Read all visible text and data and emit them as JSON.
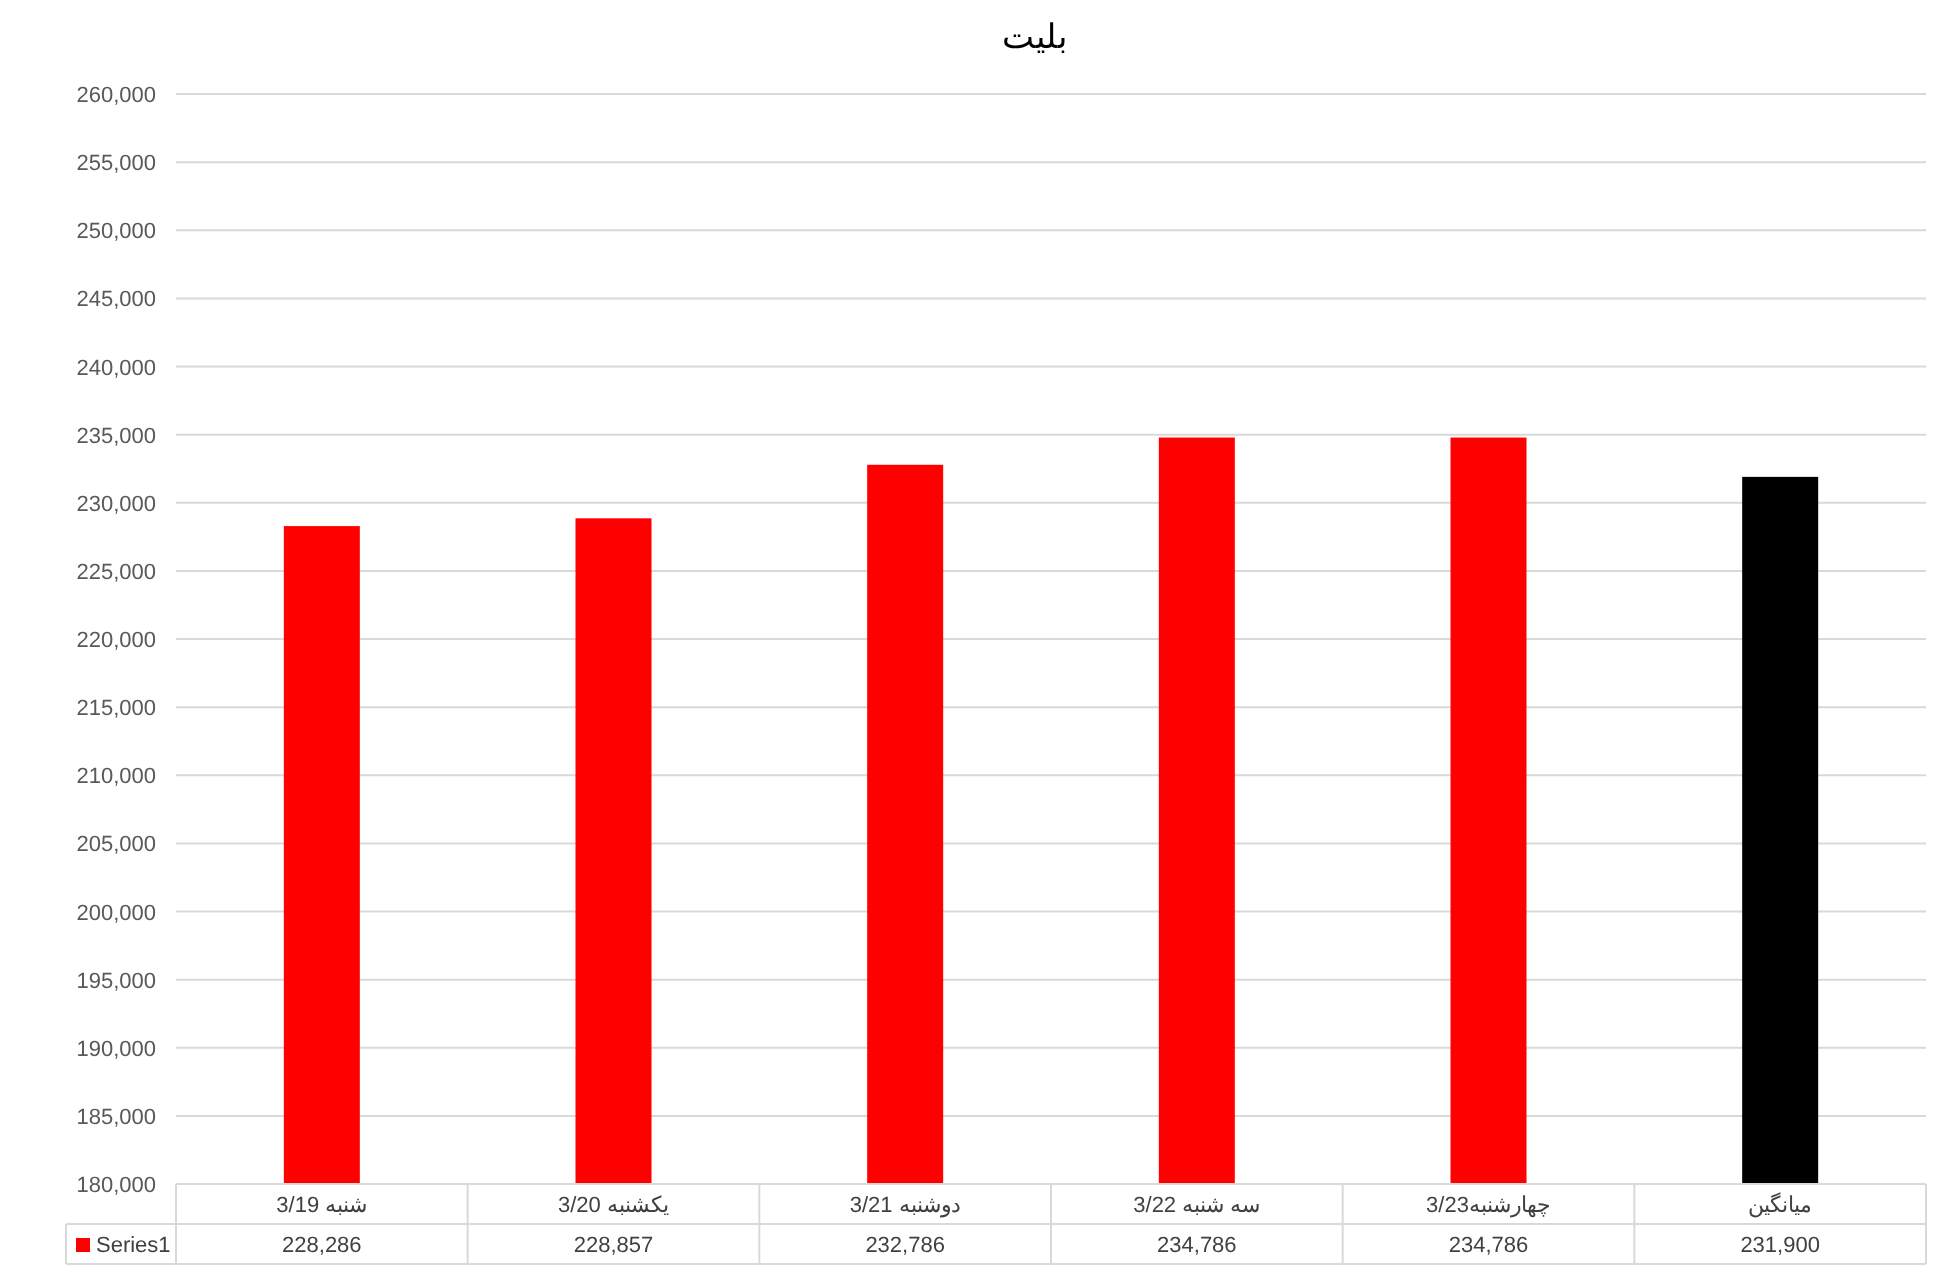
{
  "chart_data": {
    "type": "bar",
    "title": "بلیت",
    "categories": [
      "شنبه 3/19",
      "یکشنبه 3/20",
      "دوشنبه 3/21",
      "سه شنبه 3/22",
      "چهارشنبه3/23",
      "میانگین"
    ],
    "series": [
      {
        "name": "Series1",
        "color": "#ff0000",
        "colors": [
          "#ff0000",
          "#ff0000",
          "#ff0000",
          "#ff0000",
          "#ff0000",
          "#000000"
        ],
        "values": [
          228286,
          228857,
          232786,
          234786,
          234786,
          231900
        ],
        "value_labels": [
          "228,286",
          "228,857",
          "232,786",
          "234,786",
          "234,786",
          "231,900"
        ]
      }
    ],
    "ylim": [
      180000,
      260000
    ],
    "yticks": [
      {
        "value": 180000,
        "label": "180,000"
      },
      {
        "value": 185000,
        "label": "185,000"
      },
      {
        "value": 190000,
        "label": "190,000"
      },
      {
        "value": 195000,
        "label": "195,000"
      },
      {
        "value": 200000,
        "label": "200,000"
      },
      {
        "value": 205000,
        "label": "205,000"
      },
      {
        "value": 210000,
        "label": "210,000"
      },
      {
        "value": 215000,
        "label": "215,000"
      },
      {
        "value": 220000,
        "label": "220,000"
      },
      {
        "value": 225000,
        "label": "225,000"
      },
      {
        "value": 230000,
        "label": "230,000"
      },
      {
        "value": 235000,
        "label": "235,000"
      },
      {
        "value": 240000,
        "label": "240,000"
      },
      {
        "value": 245000,
        "label": "245,000"
      },
      {
        "value": 250000,
        "label": "250,000"
      },
      {
        "value": 255000,
        "label": "255,000"
      },
      {
        "value": 260000,
        "label": "260,000"
      }
    ],
    "grid": "y",
    "legend": "bottom"
  }
}
